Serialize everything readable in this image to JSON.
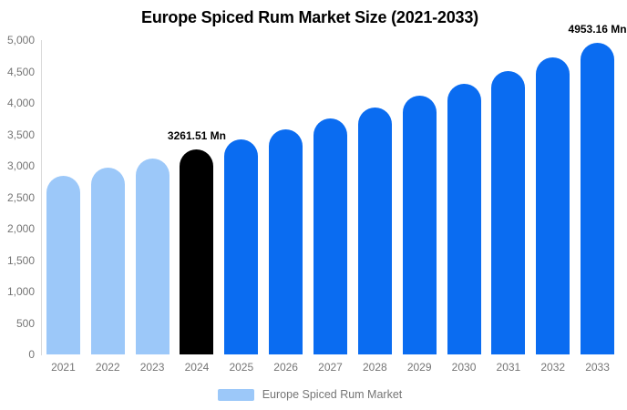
{
  "chart_data": {
    "type": "bar",
    "title": "Europe Spiced Rum Market Size (2021-2033)",
    "categories": [
      "2021",
      "2022",
      "2023",
      "2024",
      "2025",
      "2026",
      "2027",
      "2028",
      "2029",
      "2030",
      "2031",
      "2032",
      "2033"
    ],
    "values": [
      2838,
      2972,
      3114,
      3261.51,
      3416,
      3579,
      3749,
      3927,
      4113,
      4309,
      4513,
      4728,
      4953.16
    ],
    "bar_colors": [
      "#9CC8F9",
      "#9CC8F9",
      "#9CC8F9",
      "#000000",
      "#0A6CF1",
      "#0A6CF1",
      "#0A6CF1",
      "#0A6CF1",
      "#0A6CF1",
      "#0A6CF1",
      "#0A6CF1",
      "#0A6CF1",
      "#0A6CF1"
    ],
    "xlabel": "",
    "ylabel": "",
    "ylim": [
      0,
      5000
    ],
    "ytick_interval": 500,
    "ytick_labels": [
      "0",
      "500",
      "1,000",
      "1,500",
      "2,000",
      "2,500",
      "3,000",
      "3,500",
      "4,000",
      "4,500",
      "5,000"
    ],
    "grid": false,
    "legend_position": "bottom",
    "legend": [
      "Europe Spiced Rum Market"
    ],
    "annotations": [
      {
        "category": "2024",
        "text": "3261.51 Mn"
      },
      {
        "category": "2033",
        "text": "4953.16 Mn"
      }
    ]
  },
  "legend": {
    "label": "Europe Spiced Rum Market",
    "swatch_color": "#9CC8F9"
  },
  "colors": {
    "background": "#FFFFFF",
    "bar_light_blue": "#9CC8F9",
    "bar_blue": "#0A6CF1",
    "bar_black": "#000000",
    "axis_text": "#757575",
    "axis_line": "#DADADA",
    "title_text": "#000000"
  }
}
